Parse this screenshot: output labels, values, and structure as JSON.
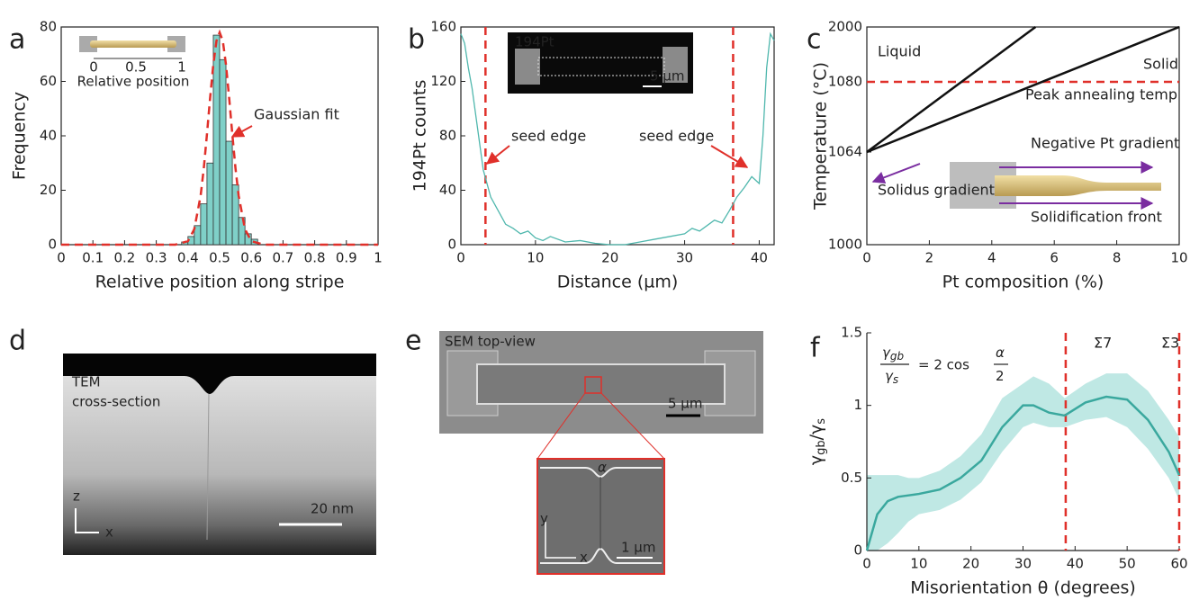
{
  "chart_data": [
    {
      "panel": "a",
      "type": "histogram",
      "xlabel": "Relative position along stripe",
      "ylabel": "Frequency",
      "bins": [
        0.38,
        0.4,
        0.42,
        0.44,
        0.46,
        0.48,
        0.5,
        0.52,
        0.54,
        0.56,
        0.58,
        0.6,
        0.62
      ],
      "counts": [
        1,
        3,
        7,
        15,
        30,
        77,
        68,
        38,
        22,
        10,
        4,
        2
      ],
      "color": "#7fd0c8",
      "fit": {
        "x": [
          0,
          0.36,
          0.4,
          0.42,
          0.44,
          0.45,
          0.46,
          0.47,
          0.48,
          0.49,
          0.5,
          0.51,
          0.52,
          0.53,
          0.54,
          0.55,
          0.56,
          0.58,
          0.6,
          0.64,
          1
        ],
        "values": [
          0,
          0,
          1.3,
          5.7,
          18.0,
          28.1,
          40.6,
          54.0,
          66.2,
          74.9,
          78,
          74.9,
          66.2,
          54.0,
          40.6,
          28.1,
          18.0,
          5.7,
          1.3,
          0,
          0
        ],
        "color": "#e0302a"
      },
      "annotations": [
        "Gaussian fit"
      ],
      "inset_labels": [
        "0",
        "0.5",
        "1",
        "Relative position"
      ],
      "xlim": [
        0,
        1
      ],
      "ylim": [
        0,
        80
      ],
      "xticks": [
        0,
        0.1,
        0.2,
        0.3,
        0.4,
        0.5,
        0.6,
        0.7,
        0.8,
        0.9,
        1
      ],
      "yticks": [
        0,
        20,
        40,
        60,
        80
      ],
      "frame": true
    },
    {
      "panel": "b",
      "type": "line",
      "xlabel": "Distance (µm)",
      "ylabel": "194Pt counts",
      "series": [
        {
          "color": "#4fb7ad",
          "x": [
            0,
            0.5,
            1,
            1.5,
            2,
            2.5,
            3,
            3.5,
            4,
            5,
            6,
            7,
            8,
            9,
            10,
            11,
            12,
            14,
            16,
            18,
            20,
            22,
            24,
            26,
            28,
            30,
            31,
            32,
            33,
            34,
            35,
            36,
            37,
            38,
            39,
            40,
            40.5,
            41,
            41.5,
            42
          ],
          "values": [
            155,
            148,
            130,
            115,
            95,
            75,
            55,
            45,
            35,
            25,
            15,
            12,
            8,
            10,
            5,
            3,
            6,
            2,
            3,
            1,
            0,
            0,
            2,
            4,
            6,
            8,
            12,
            10,
            14,
            18,
            16,
            25,
            35,
            42,
            50,
            45,
            80,
            130,
            155,
            150
          ]
        }
      ],
      "vlines": [
        3.3,
        36.5
      ],
      "vline_color": "#e0302a",
      "annotations": [
        "seed edge",
        "seed edge"
      ],
      "inset_labels": [
        "194Pt",
        "5 µm"
      ],
      "xlim": [
        0,
        42
      ],
      "ylim": [
        0,
        160
      ],
      "xticks": [
        0,
        10,
        20,
        30,
        40
      ],
      "yticks": [
        0,
        40,
        80,
        120,
        160
      ],
      "frame": true
    },
    {
      "panel": "c",
      "type": "line",
      "xlabel": "Pt composition (%)",
      "ylabel": "Temperature (°C)",
      "series": [
        {
          "color": "#111111",
          "x": [
            0,
            5.4
          ],
          "values": [
            1064,
            2000
          ]
        },
        {
          "color": "#111111",
          "x": [
            0,
            10
          ],
          "values": [
            1064,
            2000
          ]
        }
      ],
      "hlines": [
        1080
      ],
      "hline_color": "#e0302a",
      "annotations": [
        "Liquid",
        "Solid",
        "Peak annealing temp",
        "Solidus gradient",
        "Negative Pt gradient",
        "Solidification front"
      ],
      "xlim": [
        0,
        10
      ],
      "ylim": [
        1000,
        2000
      ],
      "xticks": [
        0,
        2,
        4,
        6,
        8,
        10
      ],
      "yticks": [
        1000,
        1064,
        1080,
        2000
      ],
      "frame": true
    },
    {
      "panel": "f",
      "type": "line",
      "xlabel": "Misorientation θ (degrees)",
      "ylabel_parts": [
        "γ",
        "gb",
        "/γ",
        "s"
      ],
      "series": [
        {
          "color": "#3aa89e",
          "x": [
            0,
            2,
            4,
            6,
            8,
            10,
            14,
            18,
            22,
            26,
            30,
            32,
            35,
            38,
            42,
            46,
            50,
            54,
            58,
            60
          ],
          "values": [
            0,
            0.25,
            0.34,
            0.37,
            0.38,
            0.39,
            0.42,
            0.5,
            0.62,
            0.85,
            1.0,
            1.0,
            0.95,
            0.93,
            1.02,
            1.06,
            1.04,
            0.9,
            0.68,
            0.52
          ]
        }
      ],
      "band": {
        "color": "#bfe8e4",
        "lower": [
          0,
          0,
          0.05,
          0.12,
          0.2,
          0.25,
          0.28,
          0.35,
          0.47,
          0.68,
          0.85,
          0.88,
          0.85,
          0.85,
          0.9,
          0.92,
          0.85,
          0.7,
          0.5,
          0.35
        ],
        "upper": [
          0.52,
          0.52,
          0.52,
          0.52,
          0.5,
          0.5,
          0.55,
          0.65,
          0.8,
          1.05,
          1.15,
          1.2,
          1.15,
          1.05,
          1.15,
          1.22,
          1.22,
          1.1,
          0.9,
          0.78
        ]
      },
      "vlines": [
        38.2,
        60
      ],
      "vline_color": "#e0302a",
      "annotations": [
        "Σ7",
        "Σ3"
      ],
      "equation": [
        "γ",
        "gb",
        "γ",
        "s",
        "= 2 cos",
        "α",
        "2"
      ],
      "xlim": [
        0,
        60
      ],
      "ylim": [
        0,
        1.5
      ],
      "xticks": [
        0,
        10,
        20,
        30,
        40,
        50,
        60
      ],
      "yticks": [
        0,
        0.5,
        1,
        1.5
      ],
      "frame": false
    }
  ],
  "images": [
    {
      "panel": "d",
      "labels": [
        "TEM",
        "cross-section",
        "20 nm",
        "z",
        "x"
      ]
    },
    {
      "panel": "e",
      "labels": [
        "SEM top-view",
        "5 µm",
        "α",
        "y",
        "x",
        "1 µm"
      ]
    }
  ]
}
